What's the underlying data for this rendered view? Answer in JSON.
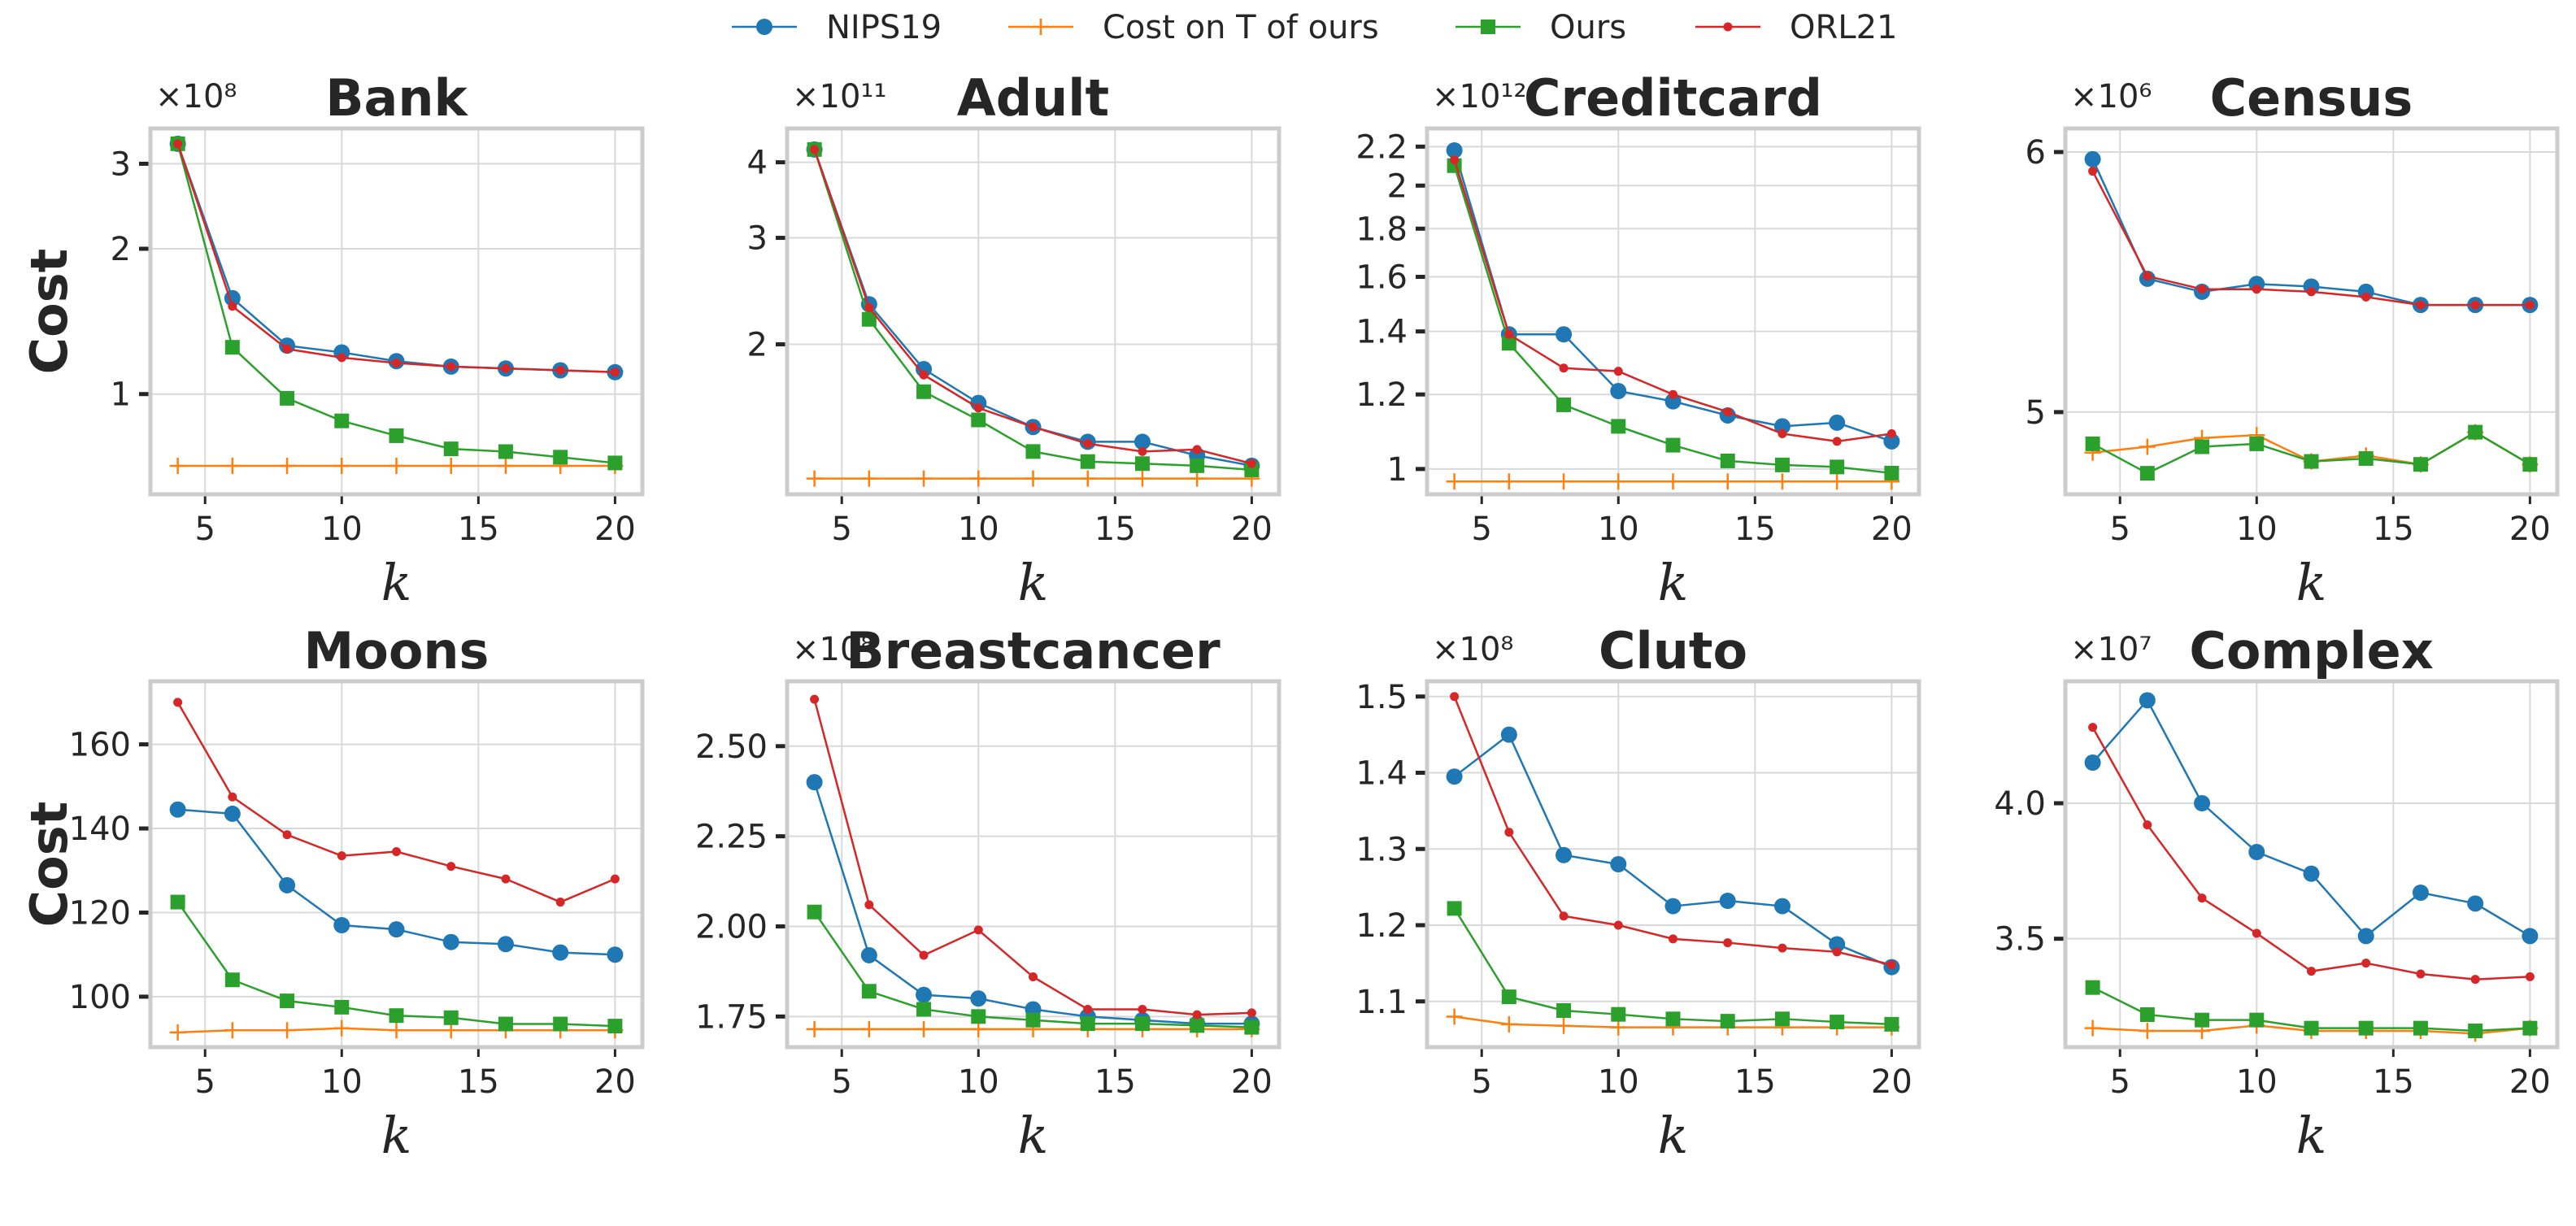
{
  "legend": {
    "items": [
      {
        "label": "NIPS19",
        "color": "#1f77b4",
        "marker": "circle"
      },
      {
        "label": "Cost on T of ours",
        "color": "#ff7f0e",
        "marker": "plus"
      },
      {
        "label": "Ours",
        "color": "#2ca02c",
        "marker": "square"
      },
      {
        "label": "ORL21",
        "color": "#d62728",
        "marker": "dot"
      }
    ]
  },
  "chart_data": [
    {
      "type": "line",
      "title": "Bank",
      "xlabel": "k",
      "ylabel": "Cost",
      "multiplier": "×10⁸",
      "x": [
        4,
        6,
        8,
        10,
        12,
        14,
        16,
        18,
        20
      ],
      "xticks": [
        5,
        10,
        15,
        20
      ],
      "xticklabels": [
        "5",
        "10",
        "15",
        "20"
      ],
      "yscale": "log",
      "ylim": [
        0.62,
        3.55
      ],
      "yticks": [
        1,
        2,
        3
      ],
      "yticklabels": [
        "1",
        "2",
        "3"
      ],
      "grid": true,
      "series": [
        {
          "name": "NIPS19",
          "values": [
            3.3,
            1.58,
            1.26,
            1.22,
            1.17,
            1.14,
            1.13,
            1.12,
            1.11
          ]
        },
        {
          "name": "Cost on T of ours",
          "values": [
            0.71,
            0.71,
            0.71,
            0.71,
            0.71,
            0.71,
            0.71,
            0.71,
            0.71
          ]
        },
        {
          "name": "Ours",
          "values": [
            3.3,
            1.25,
            0.98,
            0.88,
            0.82,
            0.77,
            0.76,
            0.74,
            0.72
          ]
        },
        {
          "name": "ORL21",
          "values": [
            3.3,
            1.52,
            1.24,
            1.19,
            1.16,
            1.14,
            1.13,
            1.12,
            1.11
          ]
        }
      ]
    },
    {
      "type": "line",
      "title": "Adult",
      "xlabel": "k",
      "ylabel": "",
      "multiplier": "×10¹¹",
      "x": [
        4,
        6,
        8,
        10,
        12,
        14,
        16,
        18,
        20
      ],
      "xticks": [
        5,
        10,
        15,
        20
      ],
      "xticklabels": [
        "5",
        "10",
        "15",
        "20"
      ],
      "yscale": "log",
      "ylim": [
        1.13,
        4.55
      ],
      "yticks": [
        2,
        3,
        4
      ],
      "yticklabels": [
        "2",
        "3",
        "4"
      ],
      "grid": true,
      "series": [
        {
          "name": "NIPS19",
          "values": [
            4.2,
            2.33,
            1.82,
            1.6,
            1.46,
            1.38,
            1.38,
            1.31,
            1.26
          ]
        },
        {
          "name": "Cost on T of ours",
          "values": [
            1.2,
            1.2,
            1.2,
            1.2,
            1.2,
            1.2,
            1.2,
            1.2,
            1.2
          ]
        },
        {
          "name": "Ours",
          "values": [
            4.2,
            2.2,
            1.67,
            1.5,
            1.33,
            1.28,
            1.27,
            1.26,
            1.24
          ]
        },
        {
          "name": "ORL21",
          "values": [
            4.2,
            2.3,
            1.78,
            1.57,
            1.46,
            1.37,
            1.33,
            1.34,
            1.27
          ]
        }
      ]
    },
    {
      "type": "line",
      "title": "Creditcard",
      "xlabel": "k",
      "ylabel": "",
      "multiplier": "×10¹²",
      "x": [
        4,
        6,
        8,
        10,
        12,
        14,
        16,
        18,
        20
      ],
      "xticks": [
        5,
        10,
        15,
        20
      ],
      "xticklabels": [
        "5",
        "10",
        "15",
        "20"
      ],
      "yscale": "log",
      "ylim": [
        0.94,
        2.3
      ],
      "yticks": [
        1,
        1.2,
        1.4,
        1.6,
        1.8,
        2,
        2.2
      ],
      "yticklabels": [
        "1",
        "1.2",
        "1.4",
        "1.6",
        "1.8",
        "2",
        "2.2"
      ],
      "grid": true,
      "series": [
        {
          "name": "NIPS19",
          "values": [
            2.18,
            1.39,
            1.39,
            1.21,
            1.18,
            1.14,
            1.11,
            1.12,
            1.07
          ]
        },
        {
          "name": "Cost on T of ours",
          "values": [
            0.97,
            0.97,
            0.97,
            0.97,
            0.97,
            0.97,
            0.97,
            0.97,
            0.97
          ]
        },
        {
          "name": "Ours",
          "values": [
            2.1,
            1.36,
            1.17,
            1.11,
            1.06,
            1.02,
            1.01,
            1.005,
            0.99
          ]
        },
        {
          "name": "ORL21",
          "values": [
            2.13,
            1.39,
            1.28,
            1.27,
            1.2,
            1.15,
            1.09,
            1.07,
            1.09
          ]
        }
      ]
    },
    {
      "type": "line",
      "title": "Census",
      "xlabel": "k",
      "ylabel": "",
      "multiplier": "×10⁶",
      "x": [
        4,
        6,
        8,
        10,
        12,
        14,
        16,
        18,
        20
      ],
      "xticks": [
        5,
        10,
        15,
        20
      ],
      "xticklabels": [
        "5",
        "10",
        "15",
        "20"
      ],
      "yscale": "log",
      "ylim": [
        4.72,
        6.1
      ],
      "yticks": [
        5,
        6
      ],
      "yticklabels": [
        "5",
        "6"
      ],
      "grid": true,
      "series": [
        {
          "name": "NIPS19",
          "values": [
            5.97,
            5.49,
            5.44,
            5.47,
            5.46,
            5.44,
            5.39,
            5.39,
            5.39
          ]
        },
        {
          "name": "Cost on T of ours",
          "values": [
            4.86,
            4.88,
            4.91,
            4.92,
            4.83,
            4.85,
            4.82,
            4.93,
            4.82
          ]
        },
        {
          "name": "Ours",
          "values": [
            4.89,
            4.79,
            4.88,
            4.89,
            4.83,
            4.84,
            4.82,
            4.93,
            4.82
          ]
        },
        {
          "name": "ORL21",
          "values": [
            5.92,
            5.5,
            5.45,
            5.45,
            5.44,
            5.42,
            5.39,
            5.39,
            5.39
          ]
        }
      ]
    },
    {
      "type": "line",
      "title": "Moons",
      "xlabel": "k",
      "ylabel": "Cost",
      "multiplier": "",
      "x": [
        4,
        6,
        8,
        10,
        12,
        14,
        16,
        18,
        20
      ],
      "xticks": [
        5,
        10,
        15,
        20
      ],
      "xticklabels": [
        "5",
        "10",
        "15",
        "20"
      ],
      "yscale": "linear",
      "ylim": [
        88,
        175
      ],
      "yticks": [
        100,
        120,
        140,
        160
      ],
      "yticklabels": [
        "100",
        "120",
        "140",
        "160"
      ],
      "grid": true,
      "series": [
        {
          "name": "NIPS19",
          "values": [
            144.5,
            143.5,
            126.5,
            117,
            116,
            113,
            112.5,
            110.5,
            110
          ]
        },
        {
          "name": "Cost on T of ours",
          "values": [
            91.5,
            92,
            92,
            92.5,
            92,
            92,
            92,
            92,
            92
          ]
        },
        {
          "name": "Ours",
          "values": [
            122.5,
            104,
            99,
            97.5,
            95.5,
            95,
            93.5,
            93.5,
            93
          ]
        },
        {
          "name": "ORL21",
          "values": [
            170,
            147.5,
            138.5,
            133.5,
            134.5,
            131,
            128,
            122.5,
            128
          ]
        }
      ]
    },
    {
      "type": "line",
      "title": "Breastcancer",
      "xlabel": "k",
      "ylabel": "",
      "multiplier": "×10⁸",
      "x": [
        4,
        6,
        8,
        10,
        12,
        14,
        16,
        18,
        20
      ],
      "xticks": [
        5,
        10,
        15,
        20
      ],
      "xticklabels": [
        "5",
        "10",
        "15",
        "20"
      ],
      "yscale": "linear",
      "ylim": [
        1.665,
        2.68
      ],
      "yticks": [
        1.75,
        2.0,
        2.25,
        2.5
      ],
      "yticklabels": [
        "1.75",
        "2.00",
        "2.25",
        "2.50"
      ],
      "grid": true,
      "series": [
        {
          "name": "NIPS19",
          "values": [
            2.4,
            1.92,
            1.81,
            1.8,
            1.77,
            1.75,
            1.74,
            1.73,
            1.73
          ]
        },
        {
          "name": "Cost on T of ours",
          "values": [
            1.715,
            1.715,
            1.715,
            1.715,
            1.715,
            1.715,
            1.715,
            1.715,
            1.715
          ]
        },
        {
          "name": "Ours",
          "values": [
            2.04,
            1.82,
            1.77,
            1.75,
            1.74,
            1.73,
            1.73,
            1.725,
            1.72
          ]
        },
        {
          "name": "ORL21",
          "values": [
            2.63,
            2.06,
            1.92,
            1.99,
            1.86,
            1.77,
            1.77,
            1.755,
            1.76
          ]
        }
      ]
    },
    {
      "type": "line",
      "title": "Cluto",
      "xlabel": "k",
      "ylabel": "",
      "multiplier": "×10⁸",
      "x": [
        4,
        6,
        8,
        10,
        12,
        14,
        16,
        18,
        20
      ],
      "xticks": [
        5,
        10,
        15,
        20
      ],
      "xticklabels": [
        "5",
        "10",
        "15",
        "20"
      ],
      "yscale": "linear",
      "ylim": [
        1.04,
        1.52
      ],
      "yticks": [
        1.1,
        1.2,
        1.3,
        1.4,
        1.5
      ],
      "yticklabels": [
        "1.1",
        "1.2",
        "1.3",
        "1.4",
        "1.5"
      ],
      "grid": true,
      "series": [
        {
          "name": "NIPS19",
          "values": [
            1.395,
            1.45,
            1.292,
            1.28,
            1.225,
            1.232,
            1.225,
            1.175,
            1.145
          ]
        },
        {
          "name": "Cost on T of ours",
          "values": [
            1.08,
            1.07,
            1.068,
            1.066,
            1.066,
            1.066,
            1.066,
            1.066,
            1.066
          ]
        },
        {
          "name": "Ours",
          "values": [
            1.222,
            1.106,
            1.088,
            1.083,
            1.077,
            1.074,
            1.077,
            1.073,
            1.07
          ]
        },
        {
          "name": "ORL21",
          "values": [
            1.5,
            1.322,
            1.212,
            1.2,
            1.182,
            1.177,
            1.17,
            1.165,
            1.148
          ]
        }
      ]
    },
    {
      "type": "line",
      "title": "Complex",
      "xlabel": "k",
      "ylabel": "",
      "multiplier": "×10⁷",
      "x": [
        4,
        6,
        8,
        10,
        12,
        14,
        16,
        18,
        20
      ],
      "xticks": [
        5,
        10,
        15,
        20
      ],
      "xticklabels": [
        "5",
        "10",
        "15",
        "20"
      ],
      "yscale": "linear",
      "ylim": [
        3.1,
        4.45
      ],
      "yticks": [
        3.5,
        4.0
      ],
      "yticklabels": [
        "3.5",
        "4.0"
      ],
      "grid": true,
      "series": [
        {
          "name": "NIPS19",
          "values": [
            4.15,
            4.38,
            4.0,
            3.82,
            3.74,
            3.51,
            3.67,
            3.63,
            3.51
          ]
        },
        {
          "name": "Cost on T of ours",
          "values": [
            3.17,
            3.16,
            3.16,
            3.18,
            3.16,
            3.16,
            3.16,
            3.15,
            3.17
          ]
        },
        {
          "name": "Ours",
          "values": [
            3.32,
            3.22,
            3.2,
            3.2,
            3.17,
            3.17,
            3.17,
            3.16,
            3.17
          ]
        },
        {
          "name": "ORL21",
          "values": [
            4.28,
            3.92,
            3.65,
            3.52,
            3.38,
            3.41,
            3.37,
            3.35,
            3.36
          ]
        }
      ]
    }
  ]
}
